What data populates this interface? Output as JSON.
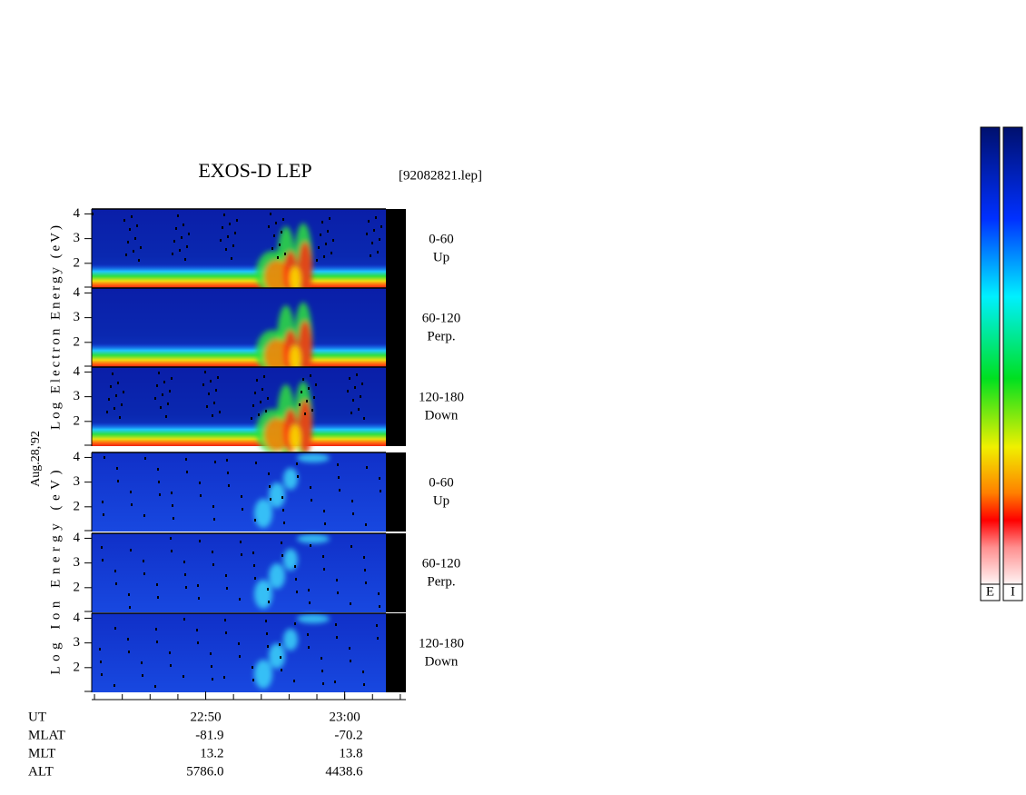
{
  "chart_data": {
    "type": "spectrogram",
    "title": "EXOS-D LEP",
    "file_label": "[92082821.lep]",
    "date_label": "Aug.28,'92",
    "groups": [
      {
        "y_label": "Log Electron Energy (eV)",
        "species": "electron",
        "panels": [
          {
            "angle": "0-60",
            "direction": "Up"
          },
          {
            "angle": "60-120",
            "direction": "Perp."
          },
          {
            "angle": "120-180",
            "direction": "Down"
          }
        ]
      },
      {
        "y_label": "Log Ion Energy (eV)",
        "species": "ion",
        "panels": [
          {
            "angle": "0-60",
            "direction": "Up"
          },
          {
            "angle": "60-120",
            "direction": "Perp."
          },
          {
            "angle": "120-180",
            "direction": "Down"
          }
        ]
      }
    ],
    "ylim": [
      1,
      4.2
    ],
    "yticks": [
      2,
      3,
      4
    ],
    "xlim": [
      41.8,
      64.4
    ],
    "xticks": [
      {
        "value": 50,
        "label": "22:50"
      },
      {
        "value": 60,
        "label": "23:00"
      }
    ],
    "x_minor_ticks": [
      42,
      44,
      46,
      48,
      50,
      52,
      54,
      56,
      58,
      60,
      62,
      64
    ],
    "info_table": {
      "rows": [
        [
          "UT"
        ],
        [
          "MLAT",
          "-81.9",
          "-70.2"
        ],
        [
          "MLT",
          "13.2",
          "13.8"
        ],
        [
          "ALT",
          "5786.0",
          "4438.6"
        ]
      ]
    },
    "colorbar_labels": [
      "E",
      "I"
    ]
  }
}
